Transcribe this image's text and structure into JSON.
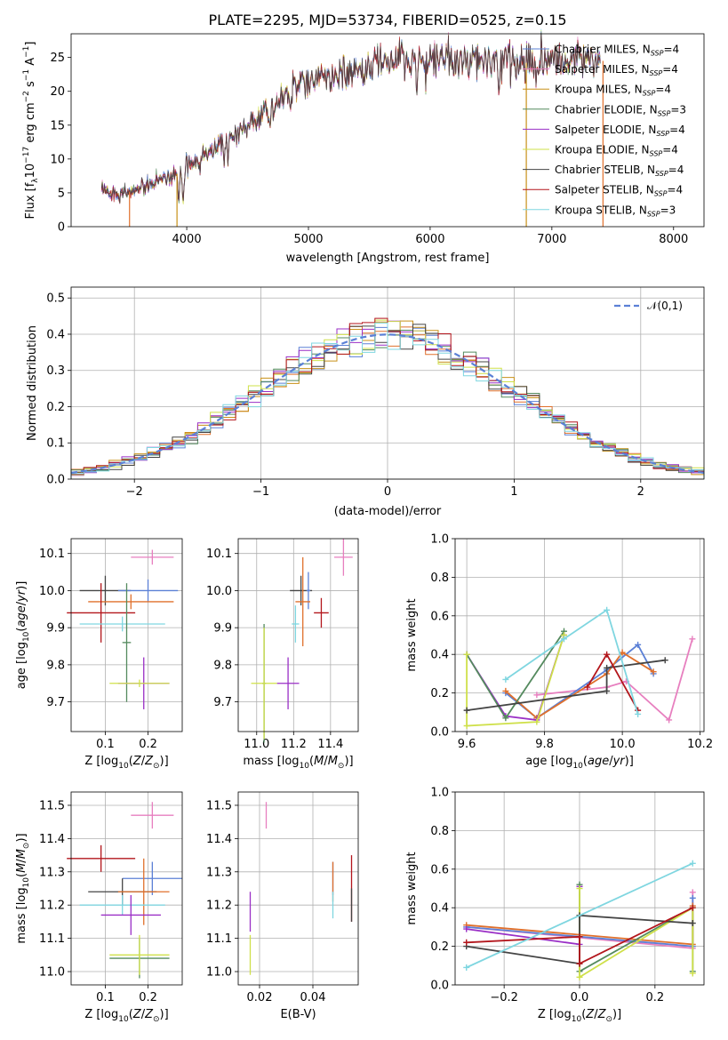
{
  "figure_title": "PLATE=2295, MJD=53734, FIBERID=0525, z=0.15",
  "model_colors": [
    "#5b80d6",
    "#e0702c",
    "#c89018",
    "#548a5e",
    "#9a2fc6",
    "#cfe04a",
    "#444444",
    "#b3161c",
    "#7fd6e0"
  ],
  "chart_data": [
    {
      "id": "spectrum",
      "type": "line",
      "xlabel": "wavelength [Angstrom, rest frame]",
      "ylabel": "Flux [f_λ10^-17 erg cm^-2 s^-1 A^-1]",
      "xlim": [
        3050,
        8250
      ],
      "ylim": [
        0,
        28.5
      ],
      "xticks": [
        4000,
        5000,
        6000,
        7000,
        8000
      ],
      "yticks": [
        0,
        5,
        10,
        15,
        20,
        25
      ],
      "grid": false,
      "legend_position": "top-right",
      "legend": [
        {
          "label": "Chabrier MILES, N_SSP=4",
          "color": "#5b80d6"
        },
        {
          "label": "Salpeter MILES, N_SSP=4",
          "color": "#e77fbf"
        },
        {
          "label": "Kroupa MILES, N_SSP=4",
          "color": "#c89018"
        },
        {
          "label": "Chabrier ELODIE, N_SSP=3",
          "color": "#548a5e"
        },
        {
          "label": "Salpeter ELODIE, N_SSP=4",
          "color": "#9a2fc6"
        },
        {
          "label": "Kroupa ELODIE, N_SSP=4",
          "color": "#cfe04a"
        },
        {
          "label": "Chabrier STELIB, N_SSP=4",
          "color": "#444444"
        },
        {
          "label": "Salpeter STELIB, N_SSP=4",
          "color": "#b3161c"
        },
        {
          "label": "Kroupa STELIB, N_SSP=3",
          "color": "#7fd6e0"
        }
      ],
      "continuum": [
        [
          3300,
          5.2
        ],
        [
          3500,
          5.0
        ],
        [
          3650,
          5.8
        ],
        [
          3800,
          7.0
        ],
        [
          3950,
          8.0
        ],
        [
          4100,
          10.5
        ],
        [
          4300,
          12.2
        ],
        [
          4500,
          15.0
        ],
        [
          4700,
          17.5
        ],
        [
          4900,
          20.5
        ],
        [
          5100,
          21.8
        ],
        [
          5300,
          22.8
        ],
        [
          5500,
          23.5
        ],
        [
          5700,
          24.2
        ],
        [
          5900,
          24.8
        ],
        [
          6100,
          24.8
        ],
        [
          6300,
          24.4
        ],
        [
          6500,
          24.2
        ],
        [
          6800,
          24.2
        ],
        [
          7000,
          24.5
        ],
        [
          7200,
          24.8
        ],
        [
          7400,
          24.5
        ]
      ],
      "absorption_features": [
        [
          3934,
          4.0
        ],
        [
          3969,
          3.8
        ],
        [
          4102,
          2.5
        ],
        [
          4305,
          3.0
        ],
        [
          4340,
          2.0
        ],
        [
          4861,
          2.0
        ],
        [
          5175,
          2.5
        ],
        [
          5270,
          1.2
        ],
        [
          5892,
          6.0
        ],
        [
          6563,
          2.5
        ],
        [
          6870,
          2.0
        ]
      ],
      "model_dropouts": [
        {
          "x": 3530,
          "color": "#e0702c"
        },
        {
          "x": 3920,
          "color": "#c89018"
        },
        {
          "x": 6790,
          "color": "#c89018"
        },
        {
          "x": 7420,
          "color": "#e0702c"
        }
      ]
    },
    {
      "id": "residuals",
      "type": "histogram",
      "xlabel": "(data-model)/error",
      "ylabel": "Normed distribution",
      "xlim": [
        -2.5,
        2.5
      ],
      "ylim": [
        0,
        0.53
      ],
      "xticks": [
        -2,
        -1,
        0,
        1,
        2
      ],
      "yticks": [
        0.0,
        0.1,
        0.2,
        0.3,
        0.4,
        0.5
      ],
      "grid": true,
      "legend_position": "top-right",
      "legend": [
        {
          "label": "𝒩(0,1)",
          "color": "#5b80d6",
          "style": "dashed"
        }
      ],
      "bin_width": 0.1,
      "gaussian": {
        "mu": 0,
        "sigma": 1
      }
    },
    {
      "id": "age_vs_Z",
      "type": "scatter",
      "xlabel": "Z [log10(Z/Z⊙)]",
      "ylabel": "age  [log10(age/yr)]",
      "xlim": [
        0.02,
        0.28
      ],
      "ylim": [
        9.62,
        10.14
      ],
      "xticks": [
        0.1,
        0.2
      ],
      "yticks": [
        9.7,
        9.8,
        9.9,
        10.0,
        10.1
      ],
      "grid": true,
      "points": [
        {
          "x": 0.1,
          "y": 10.0,
          "xerr": 0.06,
          "yerr": 0.04,
          "color": "#444444"
        },
        {
          "x": 0.2,
          "y": 10.0,
          "xerr": 0.07,
          "yerr": 0.03,
          "color": "#5b80d6"
        },
        {
          "x": 0.16,
          "y": 9.97,
          "xerr": 0.1,
          "yerr": 0.02,
          "color": "#e0702c"
        },
        {
          "x": 0.09,
          "y": 9.94,
          "xerr": 0.08,
          "yerr": 0.08,
          "color": "#b3161c"
        },
        {
          "x": 0.14,
          "y": 9.91,
          "xerr": 0.1,
          "yerr": 0.02,
          "color": "#7fd6e0"
        },
        {
          "x": 0.21,
          "y": 10.09,
          "xerr": 0.05,
          "yerr": 0.02,
          "color": "#e77fbf"
        },
        {
          "x": 0.15,
          "y": 9.86,
          "xerr": 0.01,
          "yerr": 0.16,
          "color": "#548a5e"
        },
        {
          "x": 0.19,
          "y": 9.75,
          "xerr": 0.06,
          "yerr": 0.07,
          "color": "#9a2fc6"
        },
        {
          "x": 0.18,
          "y": 9.75,
          "xerr": 0.07,
          "yerr": 0.01,
          "color": "#cfe04a"
        }
      ]
    },
    {
      "id": "age_vs_mass",
      "type": "scatter",
      "xlabel": "mass [log10(M/M⊙)]",
      "ylabel": "",
      "xlim": [
        10.9,
        11.55
      ],
      "ylim": [
        9.62,
        10.14
      ],
      "xticks": [
        11.0,
        11.2,
        11.4
      ],
      "yticks": [
        9.7,
        9.8,
        9.9,
        10.0,
        10.1
      ],
      "grid": true,
      "points": [
        {
          "x": 11.24,
          "y": 10.0,
          "xerr": 0.06,
          "yerr": 0.04,
          "color": "#444444"
        },
        {
          "x": 11.28,
          "y": 10.0,
          "xerr": 0.01,
          "yerr": 0.05,
          "color": "#5b80d6"
        },
        {
          "x": 11.25,
          "y": 9.97,
          "xerr": 0.04,
          "yerr": 0.12,
          "color": "#e0702c"
        },
        {
          "x": 11.35,
          "y": 9.94,
          "xerr": 0.04,
          "yerr": 0.04,
          "color": "#b3161c"
        },
        {
          "x": 11.21,
          "y": 9.91,
          "xerr": 0.02,
          "yerr": 0.05,
          "color": "#7fd6e0"
        },
        {
          "x": 11.47,
          "y": 10.09,
          "xerr": 0.05,
          "yerr": 0.05,
          "color": "#e77fbf"
        },
        {
          "x": 11.04,
          "y": 9.75,
          "xerr": 0.01,
          "yerr": 0.16,
          "color": "#548a5e"
        },
        {
          "x": 11.17,
          "y": 9.75,
          "xerr": 0.06,
          "yerr": 0.07,
          "color": "#9a2fc6"
        },
        {
          "x": 11.04,
          "y": 9.75,
          "xerr": 0.07,
          "yerr": 0.15,
          "color": "#cfe04a"
        }
      ]
    },
    {
      "id": "mass_weight_vs_age",
      "type": "line",
      "xlabel": "age  [log10(age/yr)]",
      "ylabel": "mass weight",
      "xlim": [
        9.57,
        10.21
      ],
      "ylim": [
        0.0,
        1.0
      ],
      "xticks": [
        9.6,
        9.8,
        10.0,
        10.2
      ],
      "yticks": [
        0.0,
        0.2,
        0.4,
        0.6,
        0.8,
        1.0
      ],
      "grid": true,
      "series": [
        {
          "color": "#e77fbf",
          "x": [
            9.78,
            9.96,
            10.01,
            10.12,
            10.18
          ],
          "y": [
            0.19,
            0.23,
            0.26,
            0.06,
            0.48
          ]
        },
        {
          "color": "#5b80d6",
          "x": [
            9.7,
            9.78,
            9.96,
            10.04,
            10.08
          ],
          "y": [
            0.2,
            0.07,
            0.32,
            0.45,
            0.3
          ]
        },
        {
          "color": "#e0702c",
          "x": [
            9.7,
            9.78,
            9.96,
            10.0,
            10.08
          ],
          "y": [
            0.21,
            0.07,
            0.3,
            0.41,
            0.31
          ]
        },
        {
          "color": "#9a2fc6",
          "x": [
            9.6,
            9.7,
            9.78,
            9.85
          ],
          "y": [
            0.4,
            0.08,
            0.06,
            0.5
          ]
        },
        {
          "color": "#548a5e",
          "x": [
            9.6,
            9.7,
            9.85
          ],
          "y": [
            0.4,
            0.07,
            0.52
          ]
        },
        {
          "color": "#cfe04a",
          "x": [
            9.6,
            9.6,
            9.78,
            9.85
          ],
          "y": [
            0.4,
            0.03,
            0.05,
            0.5
          ]
        },
        {
          "color": "#444444",
          "x": [
            9.6,
            9.96,
            9.96,
            10.11
          ],
          "y": [
            0.11,
            0.21,
            0.33,
            0.37
          ]
        },
        {
          "color": "#b3161c",
          "x": [
            9.91,
            9.96,
            10.04
          ],
          "y": [
            0.23,
            0.4,
            0.11
          ]
        },
        {
          "color": "#7fd6e0",
          "x": [
            9.7,
            9.85,
            9.96,
            10.04
          ],
          "y": [
            0.27,
            0.48,
            0.63,
            0.09
          ]
        }
      ]
    },
    {
      "id": "mass_vs_Z",
      "type": "scatter",
      "xlabel": "Z [log10(Z/Z⊙)]",
      "ylabel": "mass [log10(M/M⊙)]",
      "xlim": [
        0.02,
        0.28
      ],
      "ylim": [
        10.96,
        11.54
      ],
      "xticks": [
        0.1,
        0.2
      ],
      "yticks": [
        11.0,
        11.1,
        11.2,
        11.3,
        11.4,
        11.5
      ],
      "grid": true,
      "points": [
        {
          "x": 0.09,
          "y": 11.34,
          "xerr": 0.08,
          "yerr": 0.04,
          "color": "#b3161c"
        },
        {
          "x": 0.21,
          "y": 11.28,
          "xerr": 0.07,
          "yerr": 0.05,
          "color": "#5b80d6"
        },
        {
          "x": 0.14,
          "y": 11.24,
          "xerr": 0.08,
          "yerr": 0.04,
          "color": "#444444"
        },
        {
          "x": 0.19,
          "y": 11.24,
          "xerr": 0.06,
          "yerr": 0.1,
          "color": "#e0702c"
        },
        {
          "x": 0.14,
          "y": 11.2,
          "xerr": 0.1,
          "yerr": 0.03,
          "color": "#7fd6e0"
        },
        {
          "x": 0.16,
          "y": 11.17,
          "xerr": 0.07,
          "yerr": 0.06,
          "color": "#9a2fc6"
        },
        {
          "x": 0.21,
          "y": 11.47,
          "xerr": 0.05,
          "yerr": 0.04,
          "color": "#e77fbf"
        },
        {
          "x": 0.18,
          "y": 11.04,
          "xerr": 0.07,
          "yerr": 0.06,
          "color": "#548a5e"
        },
        {
          "x": 0.18,
          "y": 11.05,
          "xerr": 0.07,
          "yerr": 0.06,
          "color": "#cfe04a"
        }
      ]
    },
    {
      "id": "mass_vs_EBV",
      "type": "scatter",
      "xlabel": "E(B-V)",
      "ylabel": "",
      "xlim": [
        0.012,
        0.057
      ],
      "ylim": [
        10.96,
        11.54
      ],
      "xticks": [
        0.02,
        0.04
      ],
      "yticks": [
        11.0,
        11.1,
        11.2,
        11.3,
        11.4,
        11.5
      ],
      "grid": true,
      "points": [
        {
          "x": 0.0225,
          "y": 11.47,
          "xerr": 0,
          "yerr": 0.04,
          "color": "#e77fbf"
        },
        {
          "x": 0.0475,
          "y": 11.28,
          "xerr": 0,
          "yerr": 0.05,
          "color": "#5b80d6"
        },
        {
          "x": 0.0475,
          "y": 11.27,
          "xerr": 0,
          "yerr": 0.06,
          "color": "#e0702c"
        },
        {
          "x": 0.0475,
          "y": 11.2,
          "xerr": 0,
          "yerr": 0.04,
          "color": "#7fd6e0"
        },
        {
          "x": 0.0545,
          "y": 11.25,
          "xerr": 0,
          "yerr": 0.1,
          "color": "#b3161c"
        },
        {
          "x": 0.0545,
          "y": 11.2,
          "xerr": 0,
          "yerr": 0.05,
          "color": "#444444"
        },
        {
          "x": 0.0165,
          "y": 11.18,
          "xerr": 0,
          "yerr": 0.06,
          "color": "#9a2fc6"
        },
        {
          "x": 0.0165,
          "y": 11.05,
          "xerr": 0,
          "yerr": 0.06,
          "color": "#cfe04a"
        }
      ]
    },
    {
      "id": "mass_weight_vs_Z",
      "type": "line",
      "xlabel": "Z [log10(Z/Z⊙)]",
      "ylabel": "mass weight",
      "xlim": [
        -0.33,
        0.33
      ],
      "ylim": [
        0.0,
        1.0
      ],
      "xticks": [
        -0.2,
        0.0,
        0.2
      ],
      "yticks": [
        0.0,
        0.2,
        0.4,
        0.6,
        0.8,
        1.0
      ],
      "grid": true,
      "series": [
        {
          "color": "#e77fbf",
          "x": [
            -0.3,
            0.3,
            0.3
          ],
          "y": [
            0.3,
            0.19,
            0.48
          ]
        },
        {
          "color": "#5b80d6",
          "x": [
            -0.3,
            0.3,
            0.3
          ],
          "y": [
            0.3,
            0.2,
            0.45
          ]
        },
        {
          "color": "#e0702c",
          "x": [
            -0.3,
            0.3,
            0.3
          ],
          "y": [
            0.31,
            0.21,
            0.41
          ]
        },
        {
          "color": "#9a2fc6",
          "x": [
            -0.3,
            0.0,
            0.0
          ],
          "y": [
            0.29,
            0.21,
            0.51
          ]
        },
        {
          "color": "#548a5e",
          "x": [
            0.0,
            0.0,
            0.3,
            0.3
          ],
          "y": [
            0.52,
            0.07,
            0.4,
            0.07
          ]
        },
        {
          "color": "#cfe04a",
          "x": [
            0.0,
            0.0,
            0.3,
            0.3
          ],
          "y": [
            0.5,
            0.04,
            0.4,
            0.06
          ]
        },
        {
          "color": "#444444",
          "x": [
            -0.3,
            0.0,
            0.0,
            0.3
          ],
          "y": [
            0.2,
            0.11,
            0.36,
            0.32
          ]
        },
        {
          "color": "#b3161c",
          "x": [
            -0.3,
            0.0,
            0.0,
            0.3
          ],
          "y": [
            0.22,
            0.25,
            0.11,
            0.4
          ]
        },
        {
          "color": "#7fd6e0",
          "x": [
            -0.3,
            0.3
          ],
          "y": [
            0.09,
            0.63
          ]
        }
      ]
    }
  ]
}
